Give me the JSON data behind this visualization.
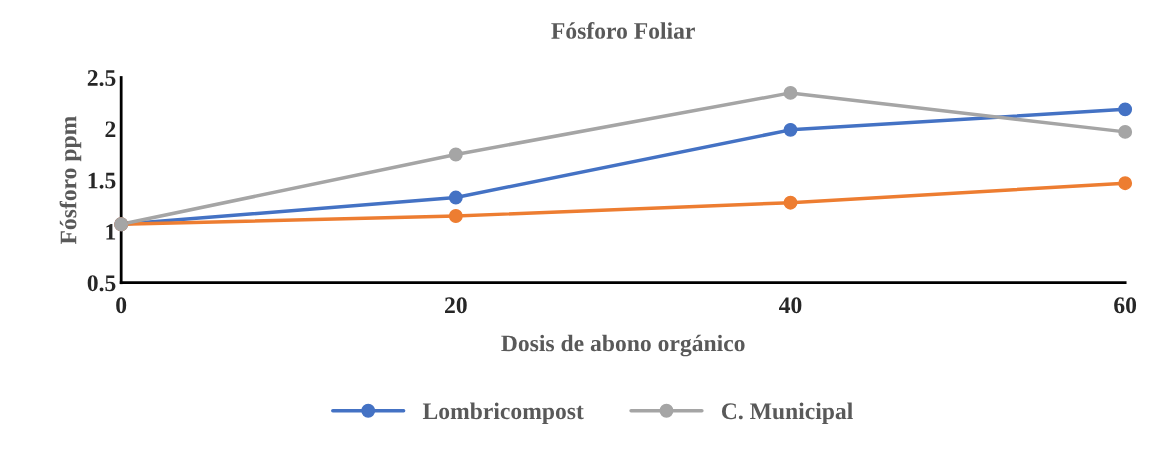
{
  "chart_data": {
    "type": "line",
    "title": "Fósforo Foliar",
    "xlabel": "Dosis de abono orgánico",
    "ylabel": "Fósforo ppm",
    "x": [
      0,
      20,
      40,
      60
    ],
    "xlim": [
      0,
      60
    ],
    "xticks": [
      0,
      20,
      40,
      60
    ],
    "ylim": [
      0.5,
      2.5
    ],
    "yticks": [
      0.5,
      1,
      1.5,
      2,
      2.5
    ],
    "grid": false,
    "legend": "bottom",
    "marker": "circle",
    "line_style": "solid",
    "series": [
      {
        "name": "Lombricompost",
        "color": "#4472c4",
        "values": [
          1.07,
          1.33,
          1.99,
          2.19
        ]
      },
      {
        "color": "#ed7d31",
        "values": [
          1.07,
          1.15,
          1.28,
          1.47
        ]
      },
      {
        "name": "C. Municipal",
        "color": "#a5a5a5",
        "values": [
          1.07,
          1.75,
          2.35,
          1.97
        ]
      }
    ]
  }
}
